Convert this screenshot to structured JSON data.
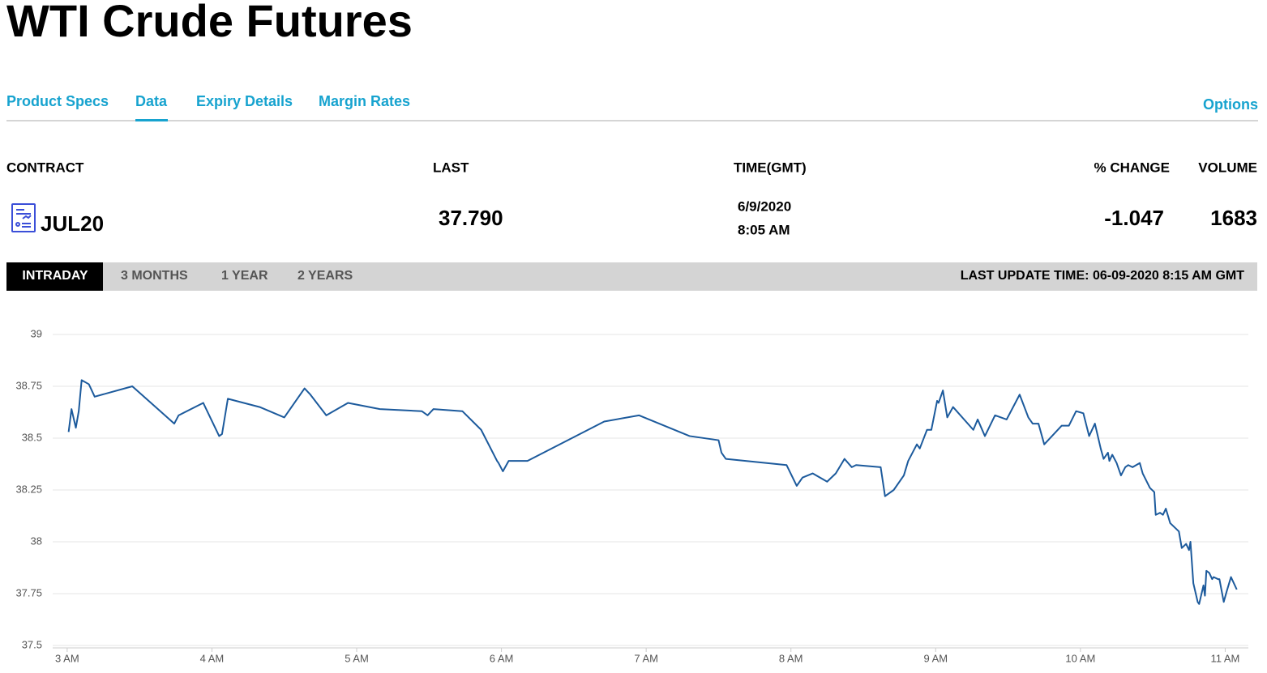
{
  "header": {
    "title": "WTI Crude Futures"
  },
  "nav": {
    "tabs": [
      "Product Specs",
      "Data",
      "Expiry Details",
      "Margin Rates"
    ],
    "right": "Options"
  },
  "table": {
    "headers": [
      "CONTRACT",
      "LAST",
      "TIME(GMT)",
      "% CHANGE",
      "VOLUME"
    ],
    "row": {
      "contract": "JUL20",
      "last": "37.790",
      "date": "6/9/2020",
      "time": "8:05 AM",
      "change": "-1.047",
      "volume": "1683"
    }
  },
  "range_tabs": {
    "tabs": [
      "INTRADAY",
      "3 MONTHS",
      "1 YEAR",
      "2 YEARS"
    ],
    "last_update": "LAST UPDATE TIME: 06-09-2020 8:15 AM GMT"
  },
  "chart_data": {
    "type": "line",
    "color": "#1c5a9c",
    "grid": true,
    "xlim": [
      2.9,
      11.16
    ],
    "ylim": [
      37.5,
      39
    ],
    "xticks": [
      {
        "value": 3,
        "label": "3 AM"
      },
      {
        "value": 4,
        "label": "4 AM"
      },
      {
        "value": 5,
        "label": "5 AM"
      },
      {
        "value": 6,
        "label": "6 AM"
      },
      {
        "value": 7,
        "label": "7 AM"
      },
      {
        "value": 8,
        "label": "8 AM"
      },
      {
        "value": 9,
        "label": "9 AM"
      },
      {
        "value": 10,
        "label": "10 AM"
      },
      {
        "value": 11,
        "label": "11 AM"
      }
    ],
    "yticks": [
      37.5,
      37.75,
      38,
      38.25,
      38.5,
      38.75,
      39
    ],
    "x": [
      3.01,
      3.03,
      3.06,
      3.08,
      3.1,
      3.15,
      3.19,
      3.45,
      3.74,
      3.77,
      3.94,
      4.05,
      4.07,
      4.11,
      4.33,
      4.5,
      4.64,
      4.68,
      4.79,
      4.94,
      5.16,
      5.45,
      5.49,
      5.53,
      5.73,
      5.86,
      5.97,
      5.98,
      6.01,
      6.05,
      6.18,
      6.71,
      6.95,
      7.3,
      7.5,
      7.52,
      7.55,
      7.97,
      8.04,
      8.08,
      8.15,
      8.25,
      8.31,
      8.37,
      8.42,
      8.45,
      8.62,
      8.65,
      8.71,
      8.78,
      8.81,
      8.87,
      8.89,
      8.94,
      8.97,
      9.01,
      9.02,
      9.05,
      9.08,
      9.12,
      9.26,
      9.29,
      9.34,
      9.41,
      9.49,
      9.58,
      9.64,
      9.67,
      9.71,
      9.75,
      9.87,
      9.92,
      9.97,
      10.02,
      10.06,
      10.1,
      10.14,
      10.16,
      10.19,
      10.2,
      10.22,
      10.25,
      10.28,
      10.31,
      10.33,
      10.36,
      10.41,
      10.43,
      10.48,
      10.51,
      10.52,
      10.55,
      10.57,
      10.59,
      10.62,
      10.65,
      10.68,
      10.7,
      10.73,
      10.75,
      10.76,
      10.78,
      10.81,
      10.82,
      10.85,
      10.86,
      10.87,
      10.89,
      10.91,
      10.92,
      10.95,
      10.96,
      10.99,
      11.01,
      11.04,
      11.08
    ],
    "values": [
      38.53,
      38.64,
      38.55,
      38.63,
      38.78,
      38.76,
      38.7,
      38.75,
      38.57,
      38.61,
      38.67,
      38.51,
      38.52,
      38.69,
      38.65,
      38.6,
      38.74,
      38.71,
      38.61,
      38.67,
      38.64,
      38.63,
      38.61,
      38.64,
      38.63,
      38.54,
      38.39,
      38.38,
      38.34,
      38.39,
      38.39,
      38.58,
      38.61,
      38.51,
      38.49,
      38.43,
      38.4,
      38.37,
      38.27,
      38.31,
      38.33,
      38.29,
      38.33,
      38.4,
      38.36,
      38.37,
      38.36,
      38.22,
      38.25,
      38.32,
      38.39,
      38.47,
      38.45,
      38.54,
      38.54,
      38.68,
      38.67,
      38.73,
      38.6,
      38.65,
      38.54,
      38.59,
      38.51,
      38.61,
      38.59,
      38.71,
      38.6,
      38.57,
      38.57,
      38.47,
      38.56,
      38.56,
      38.63,
      38.62,
      38.51,
      38.57,
      38.45,
      38.4,
      38.43,
      38.39,
      38.42,
      38.38,
      38.32,
      38.36,
      38.37,
      38.36,
      38.38,
      38.33,
      38.26,
      38.24,
      38.13,
      38.14,
      38.13,
      38.16,
      38.09,
      38.07,
      38.05,
      37.97,
      37.99,
      37.96,
      38.0,
      37.8,
      37.71,
      37.7,
      37.79,
      37.74,
      37.86,
      37.85,
      37.82,
      37.83,
      37.82,
      37.82,
      37.71,
      37.76,
      37.83,
      37.77
    ]
  }
}
